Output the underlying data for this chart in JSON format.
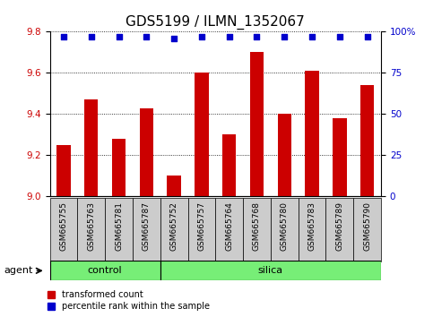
{
  "title": "GDS5199 / ILMN_1352067",
  "samples": [
    "GSM665755",
    "GSM665763",
    "GSM665781",
    "GSM665787",
    "GSM665752",
    "GSM665757",
    "GSM665764",
    "GSM665768",
    "GSM665780",
    "GSM665783",
    "GSM665789",
    "GSM665790"
  ],
  "red_values": [
    9.25,
    9.47,
    9.28,
    9.43,
    9.1,
    9.6,
    9.3,
    9.7,
    9.4,
    9.61,
    9.38,
    9.54
  ],
  "blue_values": [
    97,
    97,
    97,
    97,
    96,
    97,
    97,
    97,
    97,
    97,
    97,
    97
  ],
  "control_count": 4,
  "silica_count": 8,
  "ylim_left": [
    9.0,
    9.8
  ],
  "ylim_right": [
    0,
    100
  ],
  "yticks_left": [
    9.0,
    9.2,
    9.4,
    9.6,
    9.8
  ],
  "yticks_right": [
    0,
    25,
    50,
    75,
    100
  ],
  "bar_color": "#cc0000",
  "dot_color": "#0000cc",
  "group_color": "#77ee77",
  "bg_gray": "#cccccc",
  "title_fontsize": 11,
  "tick_fontsize": 7.5,
  "bar_width": 0.5
}
